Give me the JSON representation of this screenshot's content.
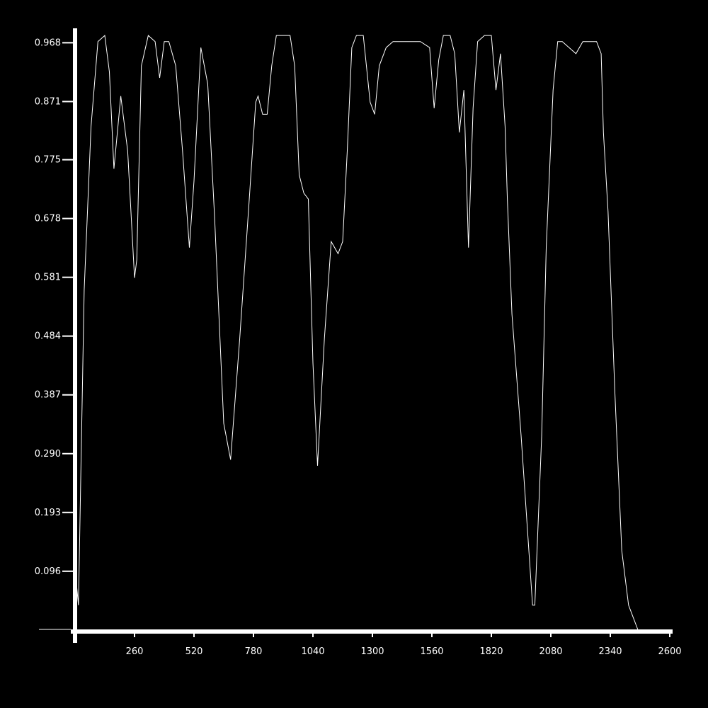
{
  "chart_data": {
    "type": "line",
    "title": "",
    "xlabel": "",
    "ylabel": "",
    "xlim": [
      0,
      2600
    ],
    "ylim": [
      0,
      1.0
    ],
    "grid": false,
    "background": "#000000",
    "line_color": "#ffffff",
    "x_ticks": [
      260,
      520,
      780,
      1040,
      1300,
      1560,
      1820,
      2080,
      2340,
      2600
    ],
    "x_tick_labels": [
      "260",
      "520",
      "780",
      "1040",
      "1300",
      "1560",
      "1820",
      "2080",
      "2340",
      "2600"
    ],
    "y_ticks": [
      0.096,
      0.193,
      0.29,
      0.387,
      0.484,
      0.581,
      0.678,
      0.775,
      0.871,
      0.968
    ],
    "y_tick_labels": [
      "0.096",
      "0.193",
      "0.290",
      "0.387",
      "0.484",
      "0.581",
      "0.678",
      "0.775",
      "0.871",
      "0.968"
    ],
    "series": [
      {
        "x": [
          0,
          15,
          40,
          70,
          100,
          130,
          150,
          170,
          200,
          230,
          260,
          270,
          290,
          320,
          350,
          370,
          390,
          410,
          440,
          470,
          500,
          520,
          550,
          580,
          610,
          650,
          680,
          720,
          760,
          790,
          800,
          820,
          840,
          860,
          880,
          900,
          920,
          940,
          960,
          980,
          1000,
          1020,
          1040,
          1060,
          1090,
          1120,
          1150,
          1170,
          1190,
          1210,
          1230,
          1260,
          1290,
          1310,
          1330,
          1360,
          1390,
          1420,
          1450,
          1480,
          1510,
          1550,
          1570,
          1590,
          1610,
          1640,
          1660,
          1680,
          1700,
          1720,
          1740,
          1760,
          1790,
          1820,
          1840,
          1860,
          1880,
          1890,
          1910,
          1950,
          2000,
          2010,
          2040,
          2060,
          2090,
          2110,
          2130,
          2160,
          2190,
          2220,
          2250,
          2280,
          2300,
          2310,
          2330,
          2360,
          2390,
          2420,
          2440,
          2460
        ],
        "y": [
          0.1,
          0.04,
          0.56,
          0.83,
          0.97,
          0.98,
          0.92,
          0.76,
          0.88,
          0.79,
          0.58,
          0.61,
          0.93,
          0.98,
          0.97,
          0.91,
          0.97,
          0.97,
          0.93,
          0.79,
          0.63,
          0.74,
          0.96,
          0.9,
          0.68,
          0.34,
          0.28,
          0.48,
          0.7,
          0.87,
          0.88,
          0.85,
          0.85,
          0.93,
          0.98,
          0.98,
          0.98,
          0.98,
          0.93,
          0.75,
          0.72,
          0.71,
          0.44,
          0.27,
          0.48,
          0.64,
          0.62,
          0.64,
          0.79,
          0.96,
          0.98,
          0.98,
          0.87,
          0.85,
          0.93,
          0.96,
          0.97,
          0.97,
          0.97,
          0.97,
          0.97,
          0.96,
          0.86,
          0.94,
          0.98,
          0.98,
          0.95,
          0.82,
          0.89,
          0.63,
          0.86,
          0.97,
          0.98,
          0.98,
          0.89,
          0.95,
          0.83,
          0.71,
          0.52,
          0.32,
          0.04,
          0.04,
          0.32,
          0.63,
          0.89,
          0.97,
          0.97,
          0.96,
          0.95,
          0.97,
          0.97,
          0.97,
          0.95,
          0.82,
          0.69,
          0.39,
          0.13,
          0.04,
          0.02,
          0.0
        ]
      }
    ]
  }
}
